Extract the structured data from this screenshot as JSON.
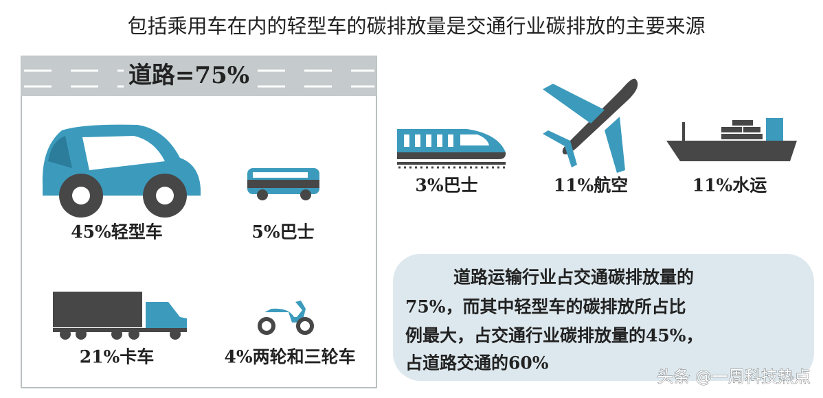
{
  "title": "包括乘用车在内的轻型车的碳排放量是交通行业碳排放的主要来源",
  "road": {
    "label": "道路=75%",
    "items": [
      {
        "label": "45%轻型车"
      },
      {
        "label": "5%巴士"
      },
      {
        "label": "21%卡车"
      },
      {
        "label": "4%两轮和三轮车"
      }
    ]
  },
  "others": [
    {
      "label": "3%巴士"
    },
    {
      "label": "11%航空"
    },
    {
      "label": "11%水运"
    }
  ],
  "note": {
    "lines": [
      "道路运输行业占交通碳排放量的",
      "75%，而其中轻型车的碳排放所占比",
      "例最大，占交通行业碳排放量的45%，",
      "占道路交通的60%"
    ]
  },
  "watermark": "头条 @一周科技热点"
}
